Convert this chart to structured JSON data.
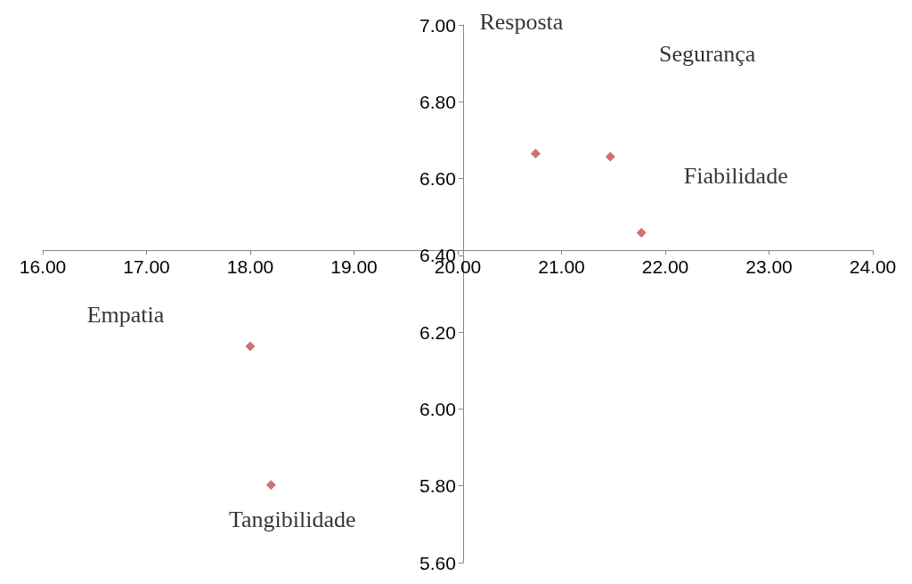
{
  "chart_data": {
    "type": "scatter",
    "series": [
      {
        "color": "#c0504d",
        "x": [
          20.75,
          21.47,
          21.77,
          18.0,
          18.2
        ],
        "values": [
          6.665,
          6.657,
          6.459,
          6.163,
          5.802
        ]
      }
    ],
    "annotations": [
      "Resposta",
      "Segurança",
      "Fiabilidade",
      "Empatia",
      "Tangibilidade"
    ],
    "xlim": [
      16,
      24
    ],
    "xticks": [
      {
        "value": 16,
        "label": "16.00"
      },
      {
        "value": 17,
        "label": "17.00"
      },
      {
        "value": 18,
        "label": "18.00"
      },
      {
        "value": 19,
        "label": "19.00"
      },
      {
        "value": 20,
        "label": "20.00"
      },
      {
        "value": 21,
        "label": "21.00"
      },
      {
        "value": 22,
        "label": "22.00"
      },
      {
        "value": 23,
        "label": "23.00"
      },
      {
        "value": 24,
        "label": "24.00"
      }
    ],
    "ylim": [
      5.6,
      7.0
    ],
    "yticks": [
      {
        "value": 5.6,
        "label": "5.60"
      },
      {
        "value": 5.8,
        "label": "5.80"
      },
      {
        "value": 6.0,
        "label": "6.00"
      },
      {
        "value": 6.2,
        "label": "6.20"
      },
      {
        "value": 6.4,
        "label": "6.40"
      },
      {
        "value": 6.6,
        "label": "6.60"
      },
      {
        "value": 6.8,
        "label": "6.80"
      },
      {
        "value": 7.0,
        "label": "7.00"
      }
    ],
    "marker": "diamond",
    "grid": false
  }
}
